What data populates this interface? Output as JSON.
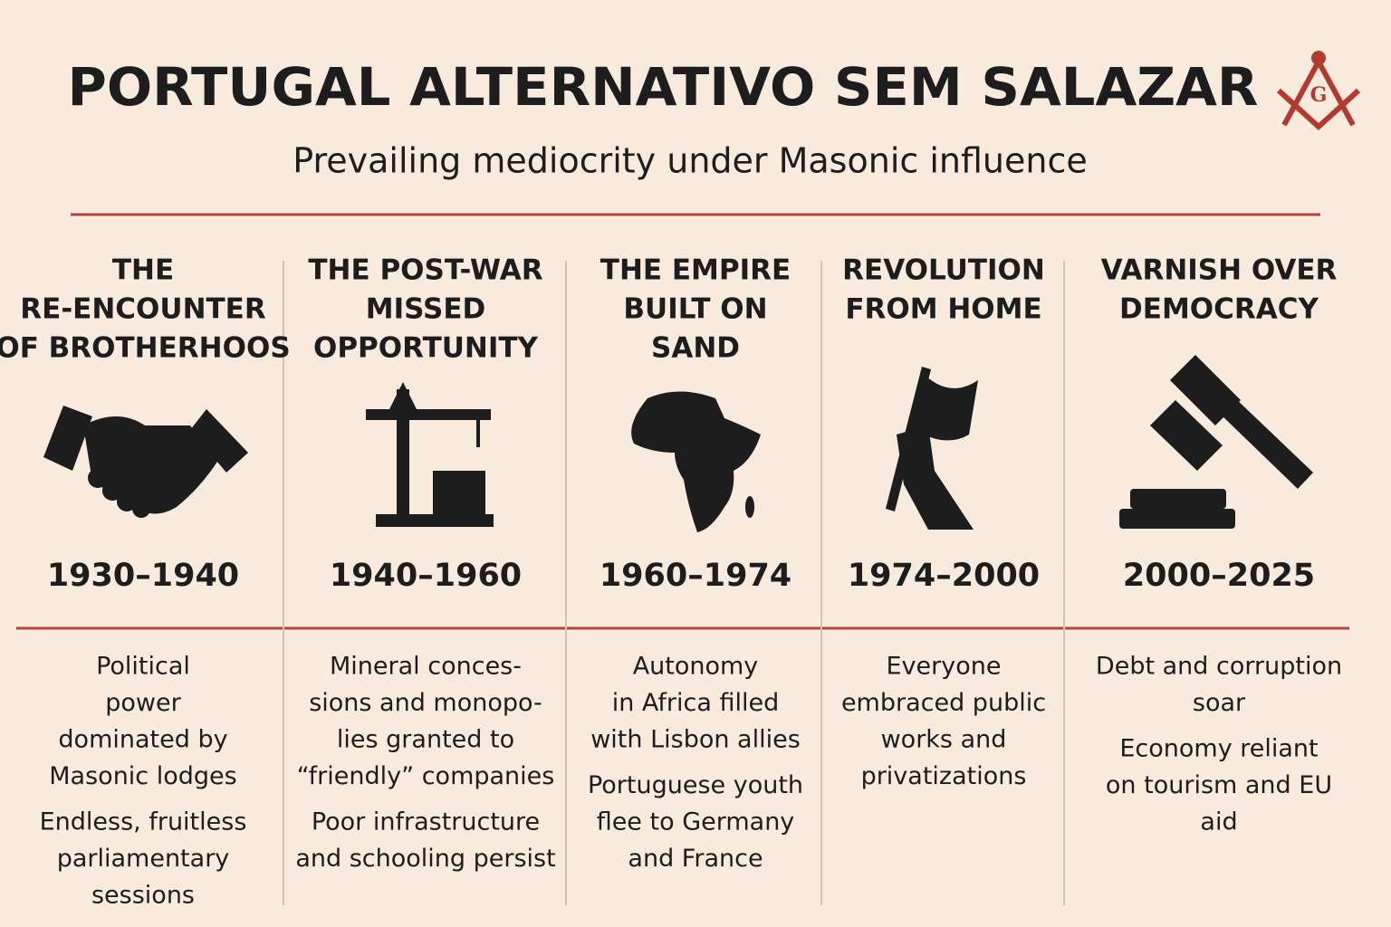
{
  "title": "PORTUGAL ALTERNATIVO SEM SALAZAR",
  "subtitle": "Prevailing mediocrity under Masonic influence",
  "columns": [
    {
      "heading": [
        "THE",
        "RE-ENCOUNTER",
        "OF BROTHERHOOS"
      ],
      "years": "1930–1940",
      "bullets": [
        [
          "Political",
          "power",
          "dominated by",
          "Masonic lodges"
        ],
        [
          "Endless, fruitless",
          "parliamentary",
          "sessions"
        ]
      ]
    },
    {
      "heading": [
        "THE POST-WAR",
        "MISSED",
        "OPPORTUNITY"
      ],
      "years": "1940–1960",
      "bullets": [
        [
          "Mineral conces-",
          "sions and monopo-",
          "lies granted to",
          "“friendly” companies"
        ],
        [
          "Poor infrastructure",
          "and schooling persist"
        ]
      ]
    },
    {
      "heading": [
        "THE EMPIRE",
        "BUILT ON",
        "SAND"
      ],
      "years": "1960–1974",
      "bullets": [
        [
          "Autonomy",
          "in Africa filled",
          "with Lisbon allies"
        ],
        [
          "Portuguese youth",
          "flee to Germany",
          "and France"
        ]
      ]
    },
    {
      "heading": [
        "REVOLUTION",
        "FROM HOME"
      ],
      "years": "1974–2000",
      "bullets": [
        [
          "Everyone",
          "embraced public",
          "works and",
          "privatizations"
        ]
      ]
    },
    {
      "heading": [
        "VARNISH OVER",
        "DEMOCRACY"
      ],
      "years": "2000–2025",
      "bullets": [
        [
          "Debt and corruption",
          "soar"
        ],
        [
          "Economy reliant",
          "on tourism and EU",
          "aid"
        ]
      ]
    }
  ]
}
